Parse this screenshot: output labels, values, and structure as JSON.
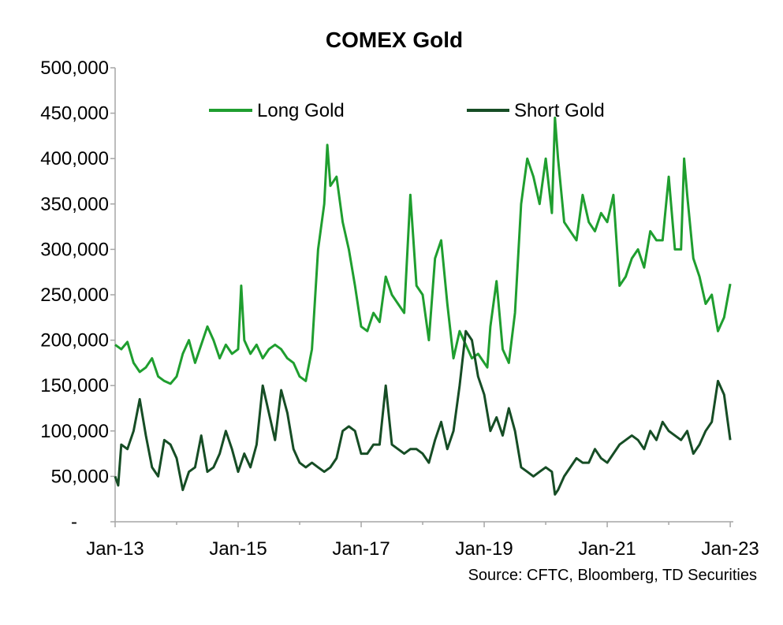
{
  "chart_data": {
    "type": "line",
    "title": "COMEX Gold",
    "xlabel": "",
    "ylabel": "",
    "source": "Source: CFTC, Bloomberg, TD Securities",
    "ylim": [
      0,
      500000
    ],
    "xlim": [
      2013.0,
      2023.05
    ],
    "y_ticks": [
      {
        "value": 0,
        "label": "-"
      },
      {
        "value": 50000,
        "label": "50,000"
      },
      {
        "value": 100000,
        "label": "100,000"
      },
      {
        "value": 150000,
        "label": "150,000"
      },
      {
        "value": 200000,
        "label": "200,000"
      },
      {
        "value": 250000,
        "label": "250,000"
      },
      {
        "value": 300000,
        "label": "300,000"
      },
      {
        "value": 350000,
        "label": "350,000"
      },
      {
        "value": 400000,
        "label": "400,000"
      },
      {
        "value": 450000,
        "label": "450,000"
      },
      {
        "value": 500000,
        "label": "500,000"
      }
    ],
    "x_ticks": [
      {
        "value": 2013,
        "label": "Jan-13"
      },
      {
        "value": 2015,
        "label": "Jan-15"
      },
      {
        "value": 2017,
        "label": "Jan-17"
      },
      {
        "value": 2019,
        "label": "Jan-19"
      },
      {
        "value": 2021,
        "label": "Jan-21"
      },
      {
        "value": 2023,
        "label": "Jan-23"
      }
    ],
    "legend_position": "top-center",
    "series": [
      {
        "name": "Long Gold",
        "color": "#1f9e2f",
        "x": [
          2013.0,
          2013.1,
          2013.2,
          2013.3,
          2013.4,
          2013.5,
          2013.6,
          2013.7,
          2013.8,
          2013.9,
          2014.0,
          2014.1,
          2014.2,
          2014.3,
          2014.4,
          2014.5,
          2014.6,
          2014.7,
          2014.8,
          2014.9,
          2015.0,
          2015.05,
          2015.1,
          2015.2,
          2015.3,
          2015.4,
          2015.5,
          2015.6,
          2015.7,
          2015.8,
          2015.9,
          2016.0,
          2016.1,
          2016.2,
          2016.3,
          2016.4,
          2016.45,
          2016.5,
          2016.6,
          2016.7,
          2016.8,
          2016.9,
          2017.0,
          2017.1,
          2017.2,
          2017.3,
          2017.4,
          2017.5,
          2017.6,
          2017.7,
          2017.8,
          2017.9,
          2018.0,
          2018.1,
          2018.2,
          2018.3,
          2018.4,
          2018.5,
          2018.6,
          2018.7,
          2018.8,
          2018.9,
          2019.0,
          2019.05,
          2019.1,
          2019.2,
          2019.3,
          2019.4,
          2019.5,
          2019.6,
          2019.7,
          2019.8,
          2019.9,
          2020.0,
          2020.1,
          2020.15,
          2020.2,
          2020.3,
          2020.4,
          2020.5,
          2020.6,
          2020.7,
          2020.8,
          2020.9,
          2021.0,
          2021.1,
          2021.2,
          2021.3,
          2021.4,
          2021.5,
          2021.6,
          2021.7,
          2021.8,
          2021.9,
          2022.0,
          2022.1,
          2022.2,
          2022.25,
          2022.3,
          2022.4,
          2022.5,
          2022.6,
          2022.7,
          2022.8,
          2022.9,
          2023.0
        ],
        "values": [
          195000,
          190000,
          198000,
          175000,
          165000,
          170000,
          180000,
          160000,
          155000,
          152000,
          160000,
          185000,
          200000,
          175000,
          195000,
          215000,
          200000,
          180000,
          195000,
          185000,
          190000,
          260000,
          200000,
          185000,
          195000,
          180000,
          190000,
          195000,
          190000,
          180000,
          175000,
          160000,
          155000,
          190000,
          300000,
          350000,
          415000,
          370000,
          380000,
          330000,
          300000,
          260000,
          215000,
          210000,
          230000,
          220000,
          270000,
          250000,
          240000,
          230000,
          360000,
          260000,
          250000,
          200000,
          290000,
          310000,
          240000,
          180000,
          210000,
          195000,
          180000,
          185000,
          175000,
          170000,
          215000,
          265000,
          190000,
          175000,
          230000,
          350000,
          400000,
          380000,
          350000,
          400000,
          340000,
          445000,
          400000,
          330000,
          320000,
          310000,
          360000,
          330000,
          320000,
          340000,
          330000,
          360000,
          260000,
          270000,
          290000,
          300000,
          280000,
          320000,
          310000,
          310000,
          380000,
          300000,
          300000,
          400000,
          360000,
          290000,
          270000,
          240000,
          250000,
          210000,
          225000,
          262000
        ]
      },
      {
        "name": "Short Gold",
        "color": "#164d25",
        "x": [
          2013.0,
          2013.05,
          2013.1,
          2013.2,
          2013.3,
          2013.4,
          2013.5,
          2013.6,
          2013.7,
          2013.8,
          2013.9,
          2014.0,
          2014.1,
          2014.2,
          2014.3,
          2014.4,
          2014.5,
          2014.6,
          2014.7,
          2014.8,
          2014.9,
          2015.0,
          2015.1,
          2015.2,
          2015.3,
          2015.4,
          2015.5,
          2015.6,
          2015.7,
          2015.8,
          2015.9,
          2016.0,
          2016.1,
          2016.2,
          2016.3,
          2016.4,
          2016.5,
          2016.6,
          2016.7,
          2016.8,
          2016.9,
          2017.0,
          2017.1,
          2017.2,
          2017.3,
          2017.4,
          2017.5,
          2017.6,
          2017.7,
          2017.8,
          2017.9,
          2018.0,
          2018.1,
          2018.2,
          2018.3,
          2018.4,
          2018.5,
          2018.6,
          2018.7,
          2018.8,
          2018.9,
          2019.0,
          2019.1,
          2019.2,
          2019.3,
          2019.4,
          2019.5,
          2019.6,
          2019.7,
          2019.8,
          2019.9,
          2020.0,
          2020.1,
          2020.15,
          2020.2,
          2020.3,
          2020.4,
          2020.5,
          2020.6,
          2020.7,
          2020.8,
          2020.9,
          2021.0,
          2021.1,
          2021.2,
          2021.3,
          2021.4,
          2021.5,
          2021.6,
          2021.7,
          2021.8,
          2021.9,
          2022.0,
          2022.1,
          2022.2,
          2022.3,
          2022.4,
          2022.5,
          2022.6,
          2022.7,
          2022.8,
          2022.9,
          2023.0
        ],
        "values": [
          50000,
          40000,
          85000,
          80000,
          100000,
          135000,
          95000,
          60000,
          50000,
          90000,
          85000,
          70000,
          35000,
          55000,
          60000,
          95000,
          55000,
          60000,
          75000,
          100000,
          80000,
          55000,
          75000,
          60000,
          85000,
          150000,
          120000,
          90000,
          145000,
          120000,
          80000,
          65000,
          60000,
          65000,
          60000,
          55000,
          60000,
          70000,
          100000,
          105000,
          100000,
          75000,
          75000,
          85000,
          85000,
          150000,
          85000,
          80000,
          75000,
          80000,
          80000,
          75000,
          65000,
          90000,
          110000,
          80000,
          100000,
          150000,
          210000,
          200000,
          160000,
          140000,
          100000,
          115000,
          95000,
          125000,
          100000,
          60000,
          55000,
          50000,
          55000,
          60000,
          55000,
          30000,
          35000,
          50000,
          60000,
          70000,
          65000,
          65000,
          80000,
          70000,
          65000,
          75000,
          85000,
          90000,
          95000,
          90000,
          80000,
          100000,
          90000,
          110000,
          100000,
          95000,
          90000,
          100000,
          75000,
          85000,
          100000,
          110000,
          155000,
          140000,
          90000
        ]
      }
    ]
  }
}
